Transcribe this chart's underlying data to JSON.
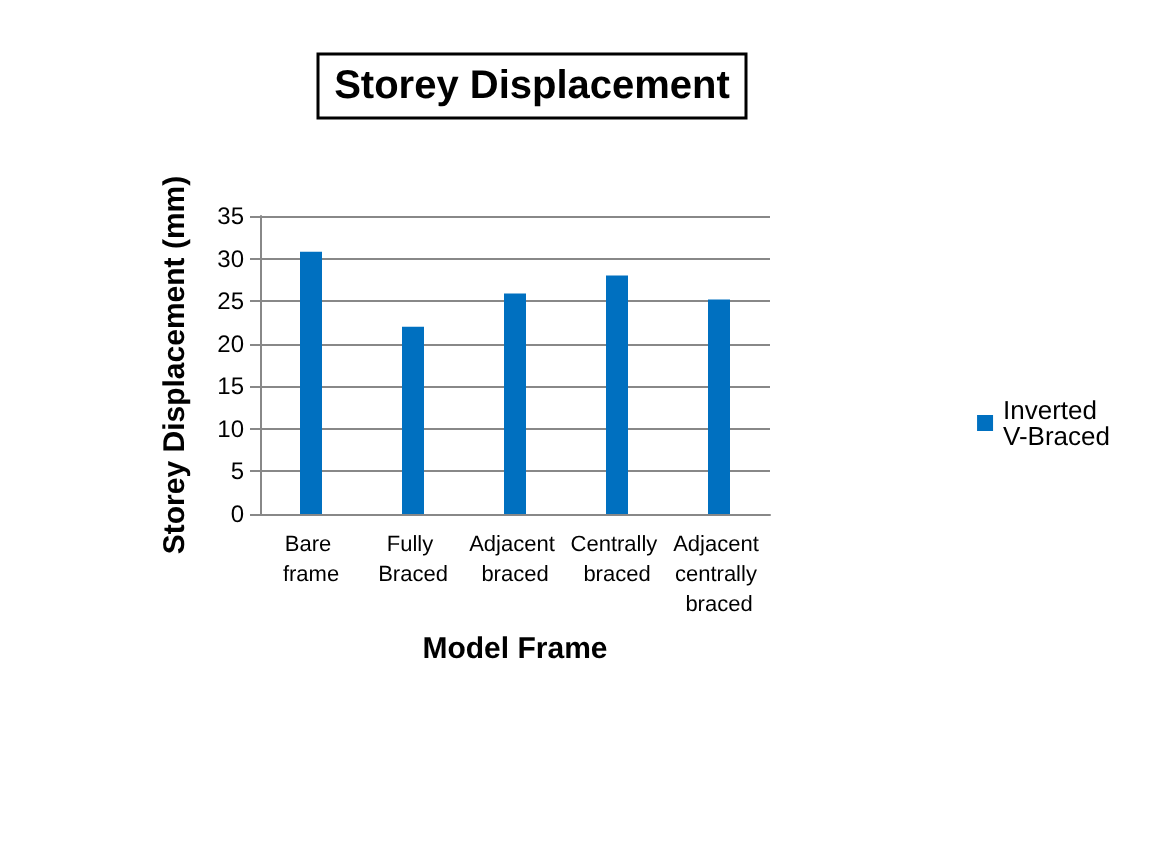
{
  "chart_data": {
    "type": "bar",
    "title": "Storey Displacement",
    "xlabel": "Model Frame",
    "ylabel": "Storey Displacement (mm)",
    "categories": [
      "Bare frame",
      "Fully Braced",
      "Adjacent braced",
      "Centrally braced",
      "Adjacent centrally braced"
    ],
    "series": [
      {
        "name": "Inverted V-Braced",
        "color": "#0070c0",
        "values": [
          30.8,
          22.0,
          25.9,
          28.0,
          25.2
        ]
      }
    ],
    "ylim": [
      0,
      35
    ],
    "yticks": [
      0,
      5,
      10,
      15,
      20,
      25,
      30,
      35
    ],
    "grid": "y",
    "legend": "right"
  }
}
